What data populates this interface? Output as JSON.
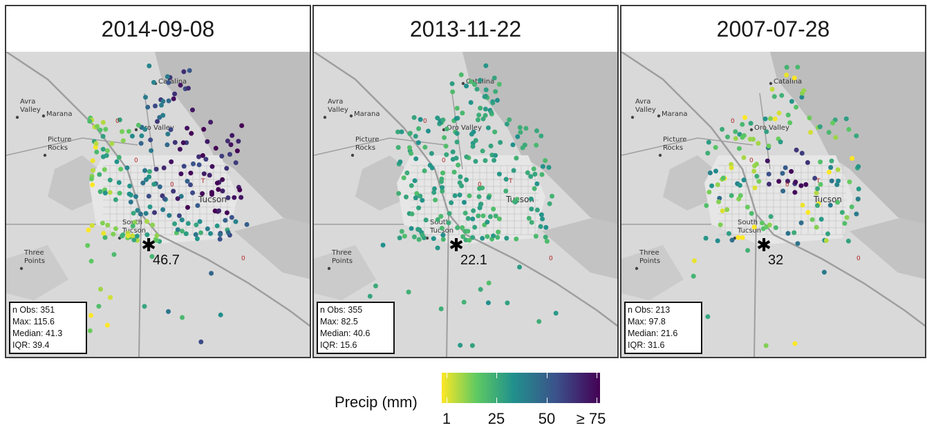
{
  "panels": [
    {
      "date": "2014-09-08",
      "marker_value": "46.7",
      "stats": {
        "n_obs": "n Obs: 351",
        "max": "Max: 115.6",
        "median": "Median: 41.3",
        "iqr": "IQR: 39.4"
      }
    },
    {
      "date": "2013-11-22",
      "marker_value": "22.1",
      "stats": {
        "n_obs": "n Obs: 355",
        "max": "Max: 82.5",
        "median": "Median: 40.6",
        "iqr": "IQR: 15.6"
      }
    },
    {
      "date": "2007-07-28",
      "marker_value": "32",
      "stats": {
        "n_obs": "n Obs: 213",
        "max": "Max: 97.8",
        "median": "Median: 21.6",
        "iqr": "IQR: 31.6"
      }
    }
  ],
  "place_names": {
    "avra": "Avra",
    "valley": "Valley",
    "marana": "Marana",
    "catalina": "Catalina",
    "oro_valley": "Oro Valley",
    "picture": "Picture",
    "rocks": "Rocks",
    "south": "South",
    "tucson_south": "Tucson",
    "three": "Three",
    "points": "Points",
    "tucson": "Tucson"
  },
  "legend": {
    "title": "Precip (mm)",
    "ticks": [
      "1",
      "25",
      "50",
      "≥ 75"
    ],
    "colors": [
      "#fde725",
      "#5ec962",
      "#21918c",
      "#3b528b",
      "#440154"
    ]
  },
  "map_colors": {
    "background": "#d9d9d9",
    "terrain": "#bdbdbd",
    "roads": "#9e9e9e",
    "urban": "#e6e6e6"
  }
}
